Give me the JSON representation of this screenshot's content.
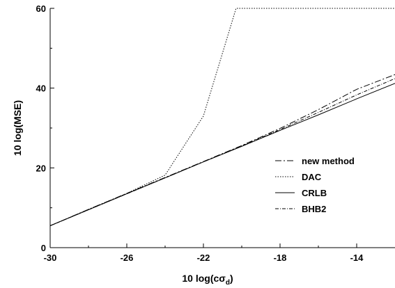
{
  "chart_data": {
    "type": "line",
    "title": "",
    "xlabel": "10 log(cσ",
    "xlabel_sub": "d",
    "xlabel_close": ")",
    "ylabel": "10 log(MSE)",
    "xlim": [
      -30,
      -12
    ],
    "ylim": [
      0,
      60
    ],
    "xticks": [
      -30,
      -26,
      -22,
      -18,
      -14
    ],
    "xtick_labels": [
      "-30",
      "-26",
      "-22",
      "-18",
      "-14"
    ],
    "yticks": [
      0,
      20,
      40,
      60
    ],
    "ytick_labels": [
      "0",
      "20",
      "40",
      "60"
    ],
    "grid": false,
    "legend_position": "right",
    "series": [
      {
        "name": "new method",
        "dash": "9,3,2,3",
        "x": [
          -30,
          -28,
          -26,
          -24,
          -22,
          -20,
          -18,
          -16,
          -14,
          -12
        ],
        "y": [
          5.5,
          9.6,
          13.6,
          17.6,
          21.6,
          25.6,
          29.9,
          34.6,
          39.7,
          43.4
        ]
      },
      {
        "name": "DAC",
        "dash": "1.5,2",
        "x": [
          -30,
          -28,
          -26,
          -24,
          -22,
          -20.3,
          -12
        ],
        "y": [
          5.5,
          9.6,
          13.6,
          18.2,
          33.0,
          60,
          60
        ]
      },
      {
        "name": "CRLB",
        "dash": "",
        "x": [
          -30,
          -28,
          -26,
          -24,
          -22,
          -20,
          -18,
          -16,
          -14,
          -12
        ],
        "y": [
          5.5,
          9.5,
          13.5,
          17.5,
          21.5,
          25.4,
          29.4,
          33.3,
          37.3,
          41.2
        ]
      },
      {
        "name": "BHB2",
        "dash": "5,2,1,2",
        "x": [
          -30,
          -28,
          -26,
          -24,
          -22,
          -20,
          -18,
          -16,
          -14,
          -12
        ],
        "y": [
          5.5,
          9.5,
          13.5,
          17.5,
          21.5,
          25.5,
          29.6,
          33.9,
          38.3,
          42.4
        ]
      }
    ]
  }
}
